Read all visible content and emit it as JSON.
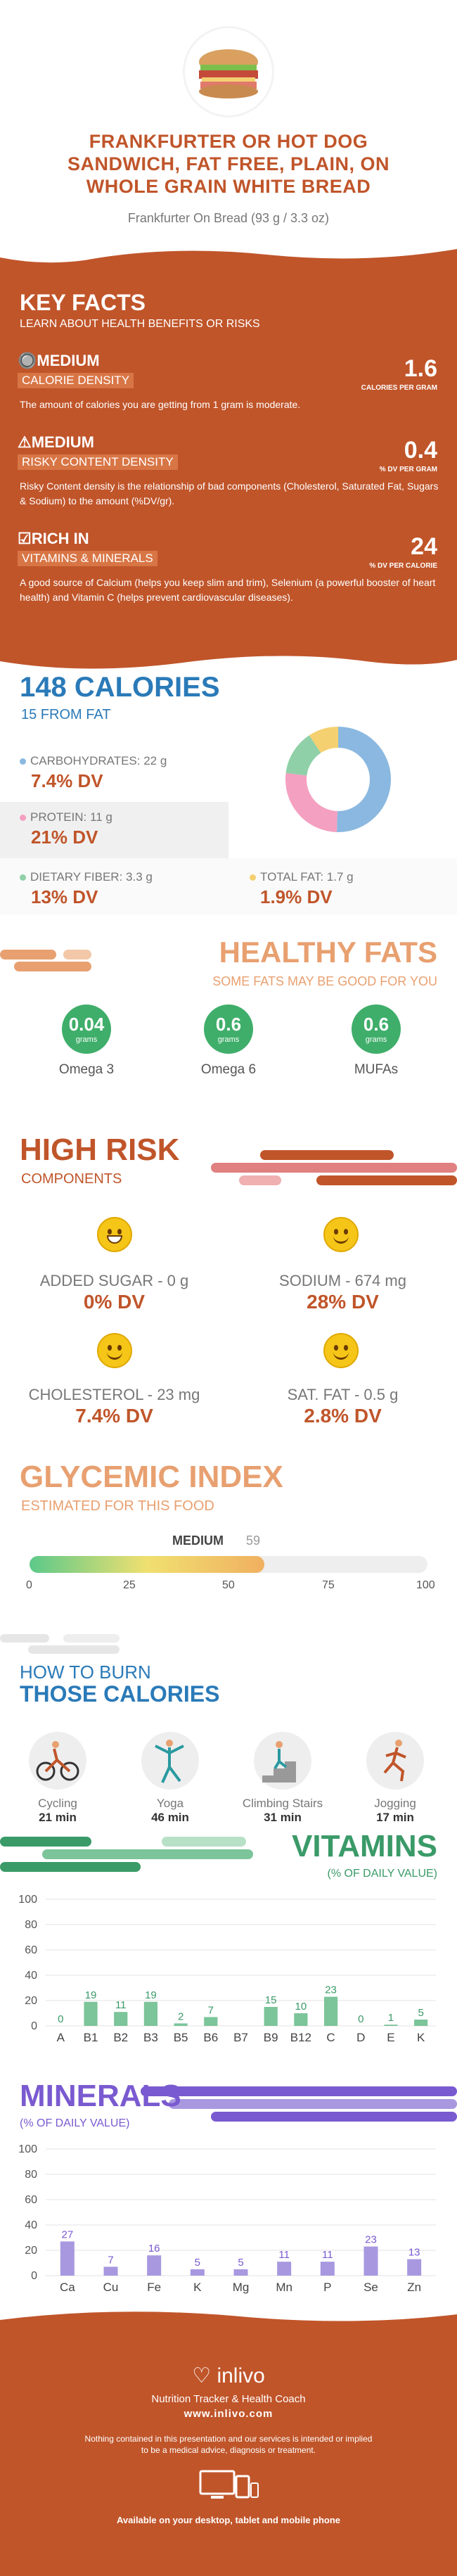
{
  "header": {
    "title_lines": [
      "FRANKFURTER OR HOT DOG",
      "SANDWICH, FAT FREE, PLAIN, ON",
      "WHOLE GRAIN WHITE BREAD"
    ],
    "subtitle": "Frankfurter On Bread (93 g / 3.3 oz)"
  },
  "key_facts": {
    "heading": "KEY FACTS",
    "subheading": "LEARN ABOUT HEALTH BENEFITS OR RISKS",
    "calorie": {
      "level": "MEDIUM",
      "label": "CALORIE DENSITY",
      "value": "1.6",
      "unit": "CALORIES PER GRAM",
      "text": "The amount of calories you are getting from 1 gram is moderate."
    },
    "risky": {
      "level": "MEDIUM",
      "label": "RISKY CONTENT DENSITY",
      "value": "0.4",
      "unit": "% DV PER GRAM",
      "text": "Risky Content density is the relationship of bad components (Cholesterol, Saturated Fat, Sugars & Sodium) to the amount (%DV/gr)."
    },
    "rich": {
      "level": "RICH  IN",
      "label": "VITAMINS & MINERALS",
      "value": "24",
      "unit": "% DV PER CALORIE",
      "text": "A good source of Calcium (helps you keep slim and trim), Selenium (a powerful booster of heart health) and Vitamin C (helps prevent cardiovascular diseases)."
    }
  },
  "calories": {
    "title": "148 CALORIES",
    "from_fat": "15 FROM FAT",
    "carbs": {
      "label": "CARBOHYDRATES: 22 g",
      "dv": "7.4% DV",
      "color": "#8ab8e0"
    },
    "protein": {
      "label": "PROTEIN: 11 g",
      "dv": "21% DV",
      "color": "#f4a0c0"
    },
    "fiber": {
      "label": "DIETARY FIBER: 3.3 g",
      "dv": "13% DV",
      "color": "#8fd0a8"
    },
    "fat": {
      "label": "TOTAL FAT: 1.7 g",
      "dv": "1.9% DV",
      "color": "#f5d070"
    }
  },
  "healthy_fats": {
    "title": "HEALTHY FATS",
    "subtitle": "SOME FATS MAY BE GOOD FOR YOU",
    "items": [
      {
        "value": "0.04",
        "unit": "grams",
        "label": "Omega 3"
      },
      {
        "value": "0.6",
        "unit": "grams",
        "label": "Omega 6"
      },
      {
        "value": "0.6",
        "unit": "grams",
        "label": "MUFAs"
      }
    ]
  },
  "high_risk": {
    "title": "HIGH RISK",
    "subtitle": "COMPONENTS",
    "items": [
      {
        "label": "ADDED SUGAR - 0 g",
        "dv": "0% DV"
      },
      {
        "label": "SODIUM - 674 mg",
        "dv": "28% DV"
      },
      {
        "label": "CHOLESTEROL - 23 mg",
        "dv": "7.4% DV"
      },
      {
        "label": "SAT. FAT - 0.5 g",
        "dv": "2.8% DV"
      }
    ]
  },
  "glycemic": {
    "title": "GLYCEMIC INDEX",
    "subtitle": "ESTIMATED FOR THIS FOOD",
    "level": "MEDIUM",
    "value": 59,
    "value_label": "59",
    "ticks": [
      "0",
      "25",
      "50",
      "75",
      "100"
    ]
  },
  "burn": {
    "title_line1": "HOW TO BURN",
    "title_line2": "THOSE CALORIES",
    "activities": [
      {
        "name": "Cycling",
        "time": "21 min",
        "icon": "cycling-icon"
      },
      {
        "name": "Yoga",
        "time": "46 min",
        "icon": "yoga-icon"
      },
      {
        "name": "Climbing Stairs",
        "time": "31 min",
        "icon": "stairs-icon"
      },
      {
        "name": "Jogging",
        "time": "17 min",
        "icon": "jogging-icon"
      }
    ]
  },
  "chart_data": [
    {
      "type": "bar",
      "title": "VITAMINS",
      "subtitle": "(% OF DAILY VALUE)",
      "categories": [
        "A",
        "B1",
        "B2",
        "B3",
        "B5",
        "B6",
        "B7",
        "B9",
        "B12",
        "C",
        "D",
        "E",
        "K"
      ],
      "values": [
        0,
        19,
        11,
        19,
        2,
        7,
        0,
        15,
        10,
        23,
        0,
        1,
        5
      ],
      "value_labels": [
        "0",
        "19",
        "11",
        "19",
        "2",
        "7",
        "",
        "15",
        "10",
        "23",
        "0",
        "1",
        "5"
      ],
      "ylim": [
        0,
        100
      ],
      "yticks": [
        "100",
        "80",
        "60",
        "40",
        "20",
        "0"
      ],
      "color": "#7cc49a",
      "accent": "#3a9a68"
    },
    {
      "type": "bar",
      "title": "MINERALS",
      "subtitle": "(% OF DAILY VALUE)",
      "categories": [
        "Ca",
        "Cu",
        "Fe",
        "K",
        "Mg",
        "Mn",
        "P",
        "Se",
        "Zn"
      ],
      "values": [
        27,
        7,
        16,
        5,
        5,
        11,
        11,
        23,
        13
      ],
      "value_labels": [
        "27",
        "7",
        "16",
        "5",
        "5",
        "11",
        "11",
        "23",
        "13"
      ],
      "ylim": [
        0,
        100
      ],
      "yticks": [
        "100",
        "80",
        "60",
        "40",
        "20",
        "0"
      ],
      "color": "#a898e0",
      "accent": "#7a5ad0"
    }
  ],
  "footer": {
    "brand": "inlivo",
    "tagline": "Nutrition Tracker & Health Coach",
    "url": "www.inlivo.com",
    "disclaimer_line1": "Nothing contained in this presentation and our services is intended or implied",
    "disclaimer_line2": "to be a medical advice, diagnosis or treatment.",
    "available": "Available on your desktop, tablet and mobile phone"
  }
}
